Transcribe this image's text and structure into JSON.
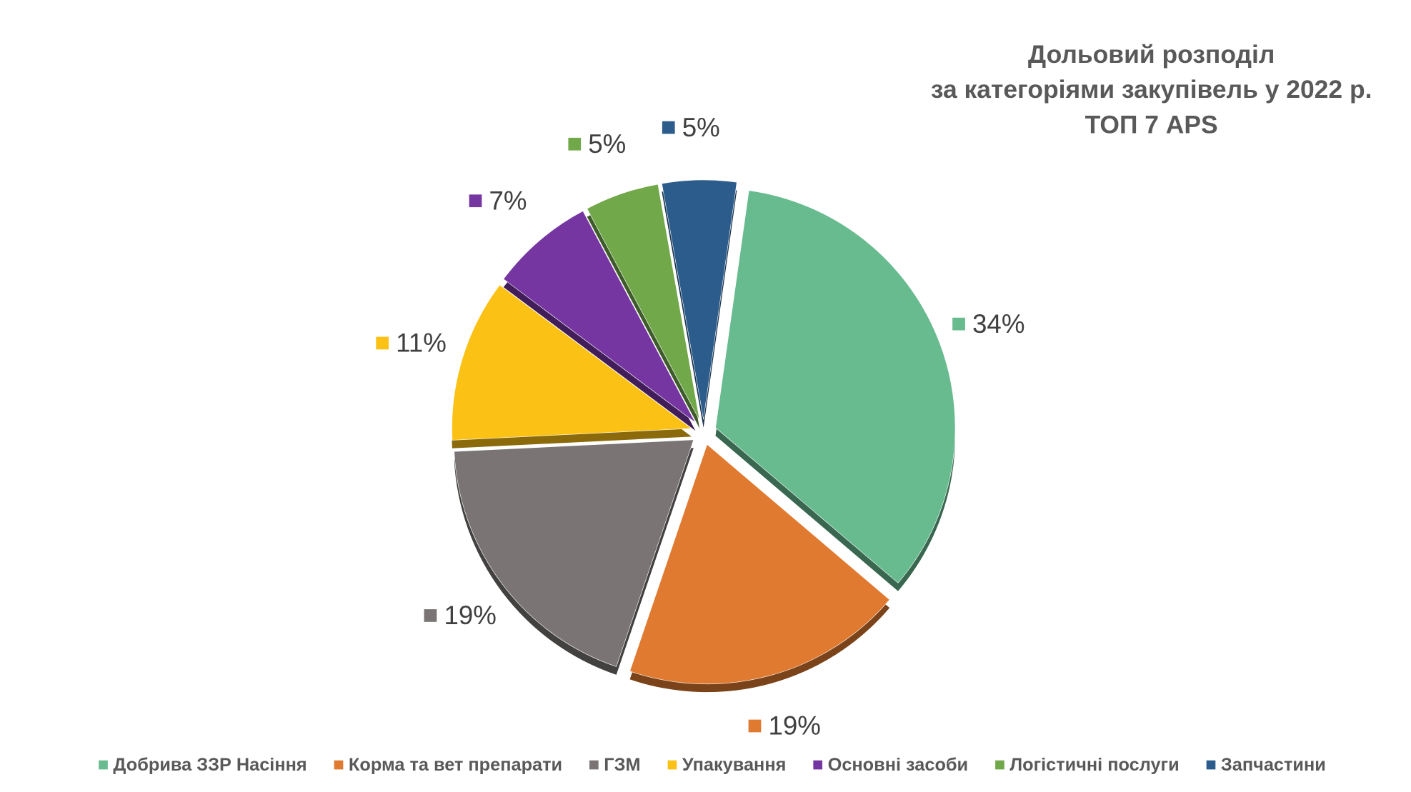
{
  "chart_data": {
    "type": "pie",
    "title": [
      "Дольовий розподіл",
      "за категоріями закупівель у 2022 р.",
      "ТОП 7 APS"
    ],
    "categories": [
      "Добрива ЗЗР Насіння",
      "Корма та вет препарати",
      "ГЗМ",
      "Упакування",
      "Основні засоби",
      "Логістичні послуги",
      "Запчастини"
    ],
    "values": [
      34,
      19,
      19,
      11,
      7,
      5,
      5
    ],
    "value_labels": [
      "34%",
      "19%",
      "19%",
      "11%",
      "7%",
      "5%",
      "5%"
    ],
    "colors": [
      "#67bb8f",
      "#e07a30",
      "#7a7474",
      "#fbc114",
      "#7636a1",
      "#71a84a",
      "#2b5c8c"
    ],
    "legend": "bottom"
  }
}
